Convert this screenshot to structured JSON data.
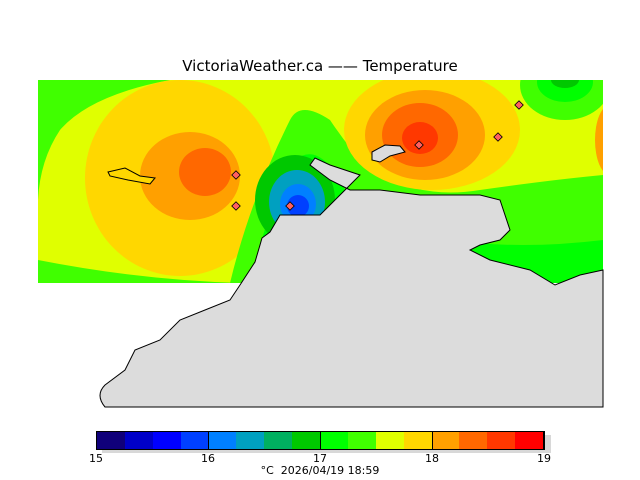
{
  "title": "VictoriaWeather.ca  —— Temperature",
  "colorbar": {
    "colors": [
      "#10007a",
      "#0000c8",
      "#0000ff",
      "#0040ff",
      "#0080ff",
      "#00a0c0",
      "#00b060",
      "#00c800",
      "#00ff00",
      "#40ff00",
      "#e0ff00",
      "#ffd700",
      "#ffa000",
      "#ff6800",
      "#ff3800",
      "#ff0000"
    ],
    "tick_labels": [
      "15",
      "16",
      "17",
      "18",
      "19"
    ],
    "min": 15,
    "max": 19
  },
  "footer": {
    "unit": "°C",
    "timestamp": "2026/04/19 18:59"
  },
  "colors": {
    "land": "#dcdcdc",
    "background": "#ffffff"
  }
}
